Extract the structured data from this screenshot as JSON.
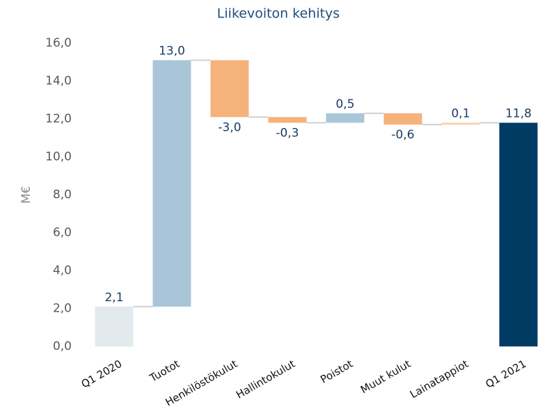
{
  "chart_data": {
    "type": "waterfall",
    "title": "Liikevoiton kehitys",
    "y_label": "M€",
    "categories": [
      "Q1 2020",
      "Tuotot",
      "Henkilöstökulut",
      "Hallintokulut",
      "Poistot",
      "Muut kulut",
      "Lainatappiot",
      "Q1 2021"
    ],
    "values": [
      2.1,
      13.0,
      -3.0,
      -0.3,
      0.5,
      -0.6,
      0.1,
      11.8
    ],
    "value_labels": [
      "2,1",
      "13,0",
      "-3,0",
      "-0,3",
      "0,5",
      "-0,6",
      "0,1",
      "11,8"
    ],
    "colors": [
      "#e3eaee",
      "#a9c5d8",
      "#f5b27a",
      "#f5b27a",
      "#a9c5d8",
      "#f5b27a",
      "#f8d0ad",
      "#003b64"
    ],
    "total_indices": [
      7
    ],
    "ylim": [
      0,
      16
    ],
    "yticks": [
      {
        "value": 0,
        "label": "0,0"
      },
      {
        "value": 2,
        "label": "2,0"
      },
      {
        "value": 4,
        "label": "4,0"
      },
      {
        "value": 6,
        "label": "6,0"
      },
      {
        "value": 8,
        "label": "8,0"
      },
      {
        "value": 10,
        "label": "10,0"
      },
      {
        "value": 12,
        "label": "12,0"
      },
      {
        "value": 14,
        "label": "14,0"
      },
      {
        "value": 16,
        "label": "16,0"
      }
    ]
  }
}
